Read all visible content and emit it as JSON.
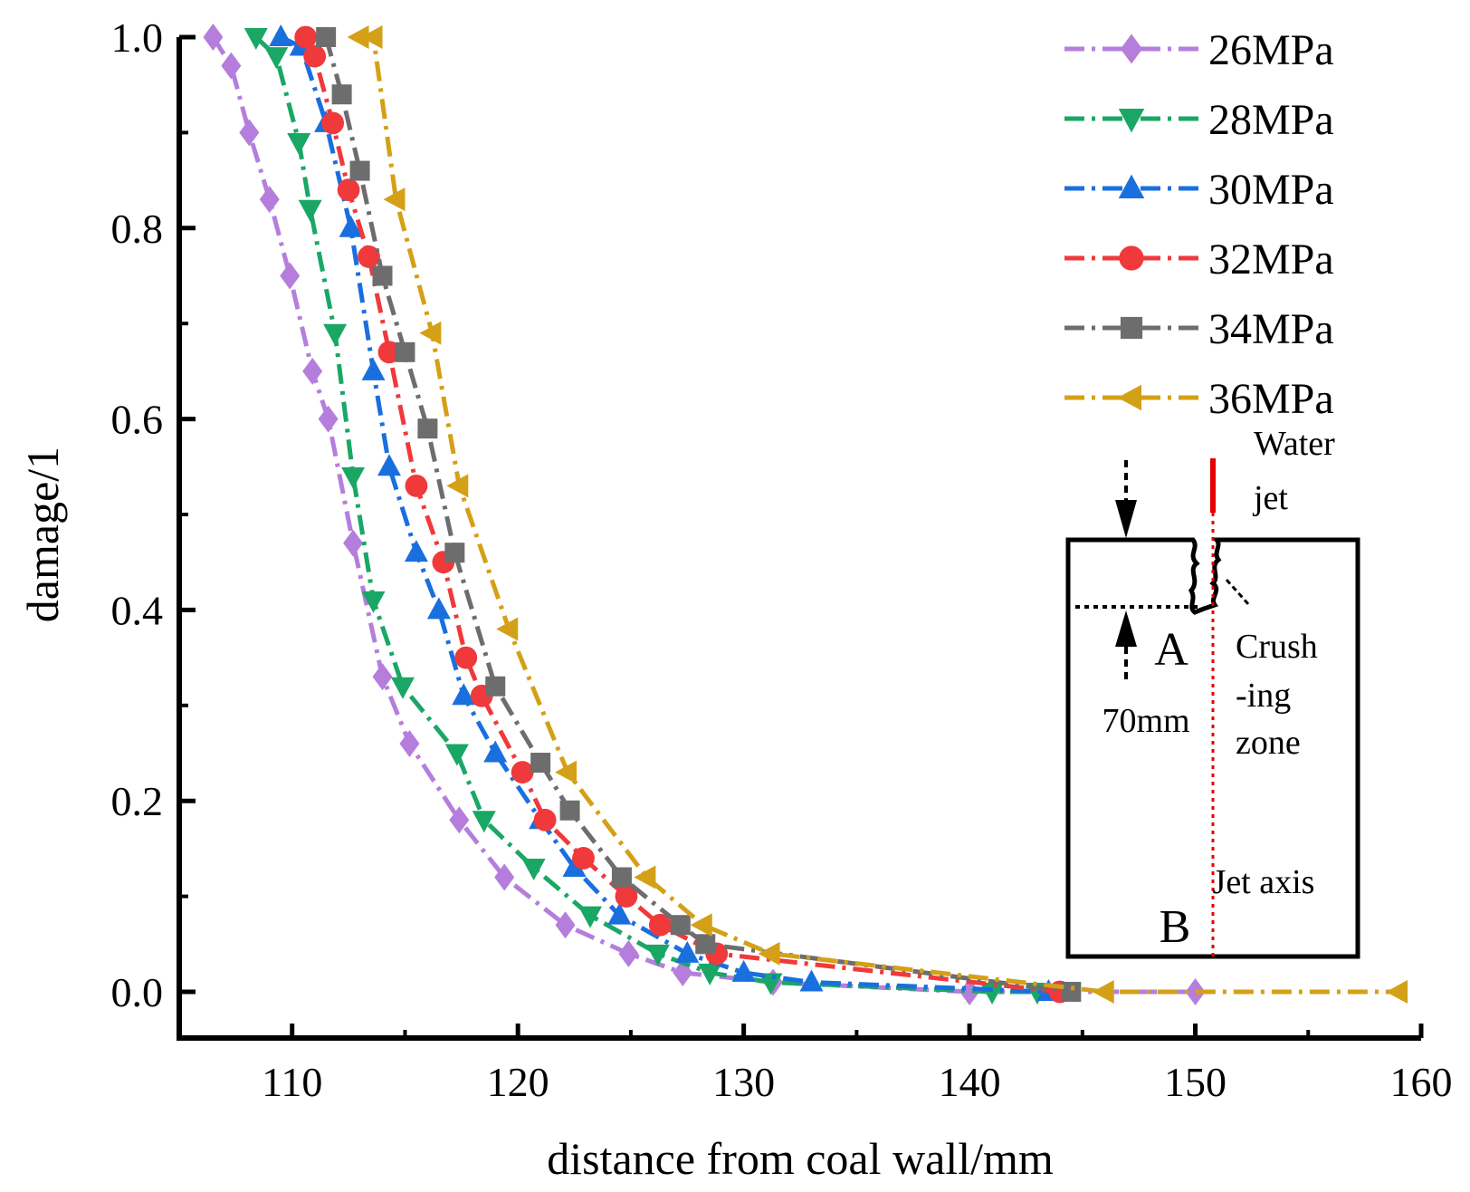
{
  "chart_data": {
    "type": "line",
    "title": "",
    "xlabel": "distance from coal wall/mm",
    "ylabel": "damage/1",
    "xlim": [
      105,
      160
    ],
    "ylim": [
      0,
      1.0
    ],
    "xticks": [
      "110",
      "120",
      "130",
      "140",
      "150",
      "160"
    ],
    "yticks": [
      "0.0",
      "0.2",
      "0.4",
      "0.6",
      "0.8",
      "1.0"
    ],
    "grid": false,
    "legend_position": "top-right",
    "series": [
      {
        "name": "26MPa",
        "color": "#b57edc",
        "marker": "diamond",
        "x": [
          106.5,
          107.3,
          108.1,
          109.0,
          109.9,
          110.9,
          111.6,
          112.7,
          114.0,
          115.2,
          117.4,
          119.4,
          122.1,
          124.9,
          127.3,
          131.3,
          140.0,
          150.0
        ],
        "y": [
          1.0,
          0.97,
          0.9,
          0.83,
          0.75,
          0.65,
          0.6,
          0.47,
          0.33,
          0.26,
          0.18,
          0.12,
          0.07,
          0.04,
          0.02,
          0.01,
          0.0,
          0.0
        ]
      },
      {
        "name": "28MPa",
        "color": "#1aa765",
        "marker": "triangle-down",
        "x": [
          108.4,
          109.3,
          110.3,
          110.8,
          111.9,
          112.7,
          113.6,
          114.9,
          117.3,
          118.5,
          120.7,
          123.2,
          126.2,
          128.5,
          131.2,
          141.0,
          143.0
        ],
        "y": [
          1.0,
          0.98,
          0.89,
          0.82,
          0.69,
          0.54,
          0.41,
          0.32,
          0.25,
          0.18,
          0.13,
          0.08,
          0.04,
          0.02,
          0.01,
          0.0,
          0.0
        ]
      },
      {
        "name": "30MPa",
        "color": "#1a6fdf",
        "marker": "triangle-up",
        "x": [
          109.5,
          110.4,
          111.5,
          112.6,
          113.6,
          114.3,
          115.5,
          116.5,
          117.6,
          119.0,
          121.0,
          122.5,
          124.5,
          127.5,
          130.0,
          133.0,
          143.5
        ],
        "y": [
          1.0,
          0.99,
          0.91,
          0.8,
          0.65,
          0.55,
          0.46,
          0.4,
          0.31,
          0.25,
          0.18,
          0.13,
          0.08,
          0.04,
          0.02,
          0.01,
          0.0
        ]
      },
      {
        "name": "32MPa",
        "color": "#f0393b",
        "marker": "circle",
        "x": [
          110.6,
          111.0,
          111.8,
          112.5,
          113.4,
          114.3,
          115.5,
          116.7,
          117.7,
          118.4,
          120.2,
          121.2,
          122.9,
          124.8,
          126.3,
          128.8,
          144.0
        ],
        "y": [
          1.0,
          0.98,
          0.91,
          0.84,
          0.77,
          0.67,
          0.53,
          0.45,
          0.35,
          0.31,
          0.23,
          0.18,
          0.14,
          0.1,
          0.07,
          0.04,
          0.0
        ]
      },
      {
        "name": "34MPa",
        "color": "#6d6d6d",
        "marker": "square",
        "x": [
          111.5,
          112.2,
          113.0,
          114.0,
          115.0,
          116.0,
          117.2,
          119.0,
          121.0,
          122.3,
          124.6,
          127.2,
          128.3,
          144.5
        ],
        "y": [
          1.0,
          0.94,
          0.86,
          0.75,
          0.67,
          0.59,
          0.46,
          0.32,
          0.24,
          0.19,
          0.12,
          0.07,
          0.05,
          0.0
        ]
      },
      {
        "name": "36MPa",
        "color": "#d4a017",
        "marker": "triangle-left",
        "x": [
          113.0,
          113.6,
          114.6,
          116.2,
          117.4,
          119.6,
          122.2,
          125.7,
          128.2,
          131.2,
          146.0,
          159.0
        ],
        "y": [
          1.0,
          1.0,
          0.83,
          0.69,
          0.53,
          0.38,
          0.23,
          0.12,
          0.07,
          0.04,
          0.0,
          0.0
        ]
      }
    ],
    "inset": {
      "water_jet": "Water\njet",
      "crushing_zone": "Crush\n-ing\nzone",
      "point_a": "A",
      "point_b": "B",
      "distance": "70mm",
      "jet_axis": "Jet axis"
    }
  }
}
